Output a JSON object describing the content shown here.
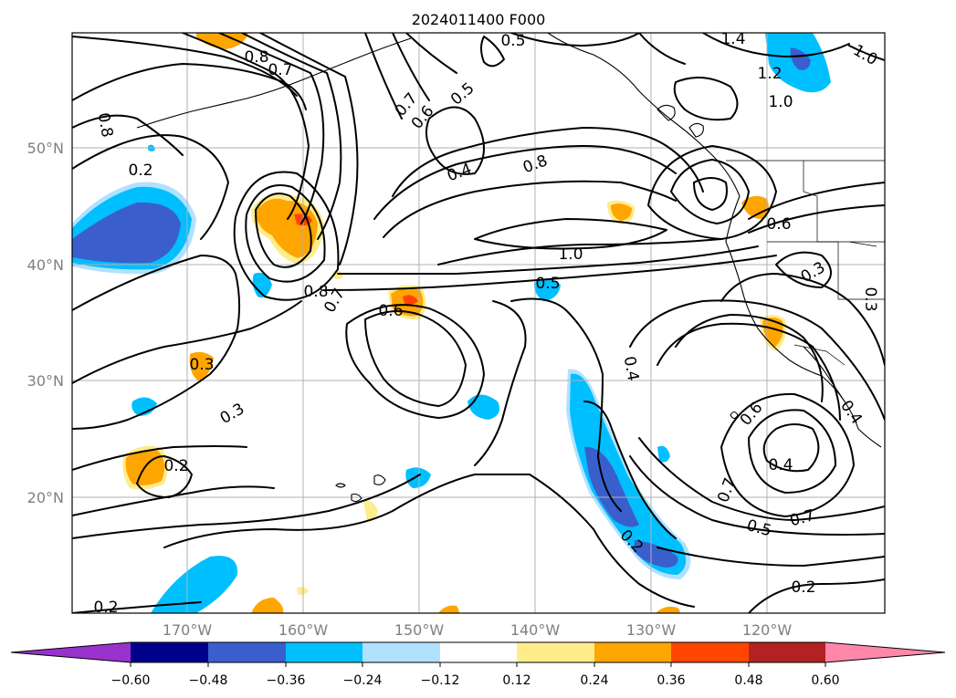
{
  "title": "2024011400 F000",
  "lat_ticks": [
    "50°N",
    "40°N",
    "30°N",
    "20°N"
  ],
  "lon_ticks": [
    "170°W",
    "160°W",
    "150°W",
    "140°W",
    "130°W",
    "120°W"
  ],
  "colorbar": {
    "ticks": [
      "−0.60",
      "−0.48",
      "−0.36",
      "−0.24",
      "−0.12",
      "0.12",
      "0.24",
      "0.36",
      "0.48",
      "0.60"
    ],
    "colors": [
      "#9932cc",
      "#00008b",
      "#3a5fcd",
      "#00bfff",
      "#b0e2ff",
      "#ffffff",
      "#ffec8b",
      "#ffa500",
      "#ff4500",
      "#b22222",
      "#ff88aa"
    ]
  },
  "contour_labels": [
    "0.5",
    "1.4",
    "1.0",
    "0.8",
    "0.7",
    "1.2",
    "1.0",
    "0.7",
    "0.5",
    "0.6",
    "0.4",
    "0.8",
    "0.8",
    "0.2",
    "1.0",
    "0.5",
    "0.8",
    "0.7",
    "0.6",
    "0.6",
    "0.3",
    "0.3",
    "0.3",
    "0.3",
    "0.4",
    "0.6",
    "0.4",
    "0.7",
    "0.5",
    "0.7",
    "0.2",
    "0.2",
    "0.2",
    "0.2",
    "0.4"
  ],
  "colors": {
    "blue_fill": "#00bfff",
    "dark_blue_fill": "#3a5fcd",
    "light_blue_fill": "#b0e2ff",
    "orange_fill": "#ffa500",
    "yellow_fill": "#ffec8b",
    "red_fill": "#ff4500",
    "grid": "#b0b0b0"
  }
}
